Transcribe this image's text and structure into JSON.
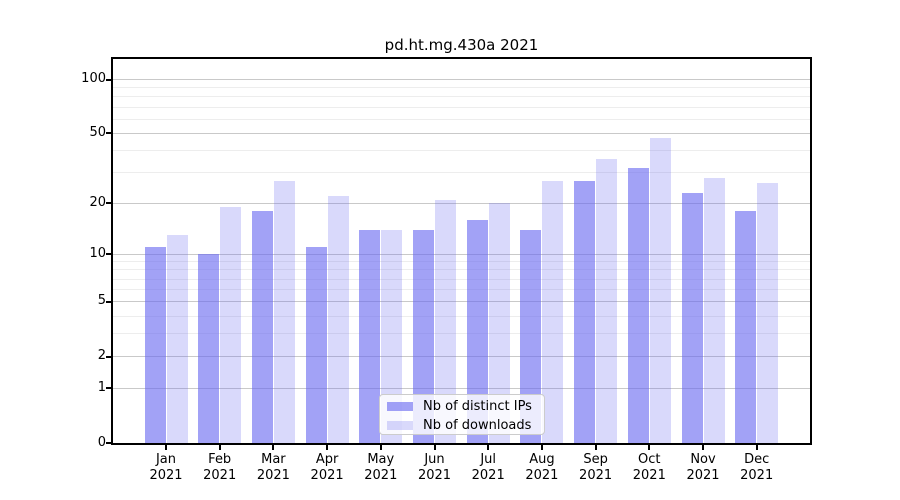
{
  "title": "pd.ht.mg.430a 2021",
  "chart_data": {
    "type": "bar",
    "title": "pd.ht.mg.430a 2021",
    "categories": [
      "Jan",
      "Feb",
      "Mar",
      "Apr",
      "May",
      "Jun",
      "Jul",
      "Aug",
      "Sep",
      "Oct",
      "Nov",
      "Dec"
    ],
    "year_label": "2021",
    "series": [
      {
        "name": "Nb of distinct IPs",
        "values": [
          11,
          10,
          18,
          11,
          14,
          14,
          16,
          14,
          27,
          32,
          23,
          18
        ],
        "color": "rgba(105,105,240,0.62)"
      },
      {
        "name": "Nb of downloads",
        "values": [
          13,
          19,
          27,
          22,
          14,
          21,
          20,
          27,
          36,
          47,
          28,
          26
        ],
        "color": "rgba(105,105,240,0.25)"
      }
    ],
    "xlabel": "",
    "ylabel": "",
    "yscale": "log1p",
    "ylim": [
      0,
      128
    ],
    "yticks": [
      0,
      1,
      2,
      5,
      10,
      20,
      50,
      100
    ],
    "major_gridlines": [
      1,
      2,
      5,
      10,
      20,
      50,
      100
    ],
    "minor_gridlines": [
      3,
      4,
      6,
      7,
      8,
      9,
      30,
      40,
      60,
      70,
      80,
      90
    ],
    "grid": "on",
    "legend_position": "lower center",
    "colors": {
      "major_grid": "#c9c9c9",
      "minor_grid": "#ededed",
      "spine": "#000000",
      "legend_border": "#cccccc"
    }
  }
}
